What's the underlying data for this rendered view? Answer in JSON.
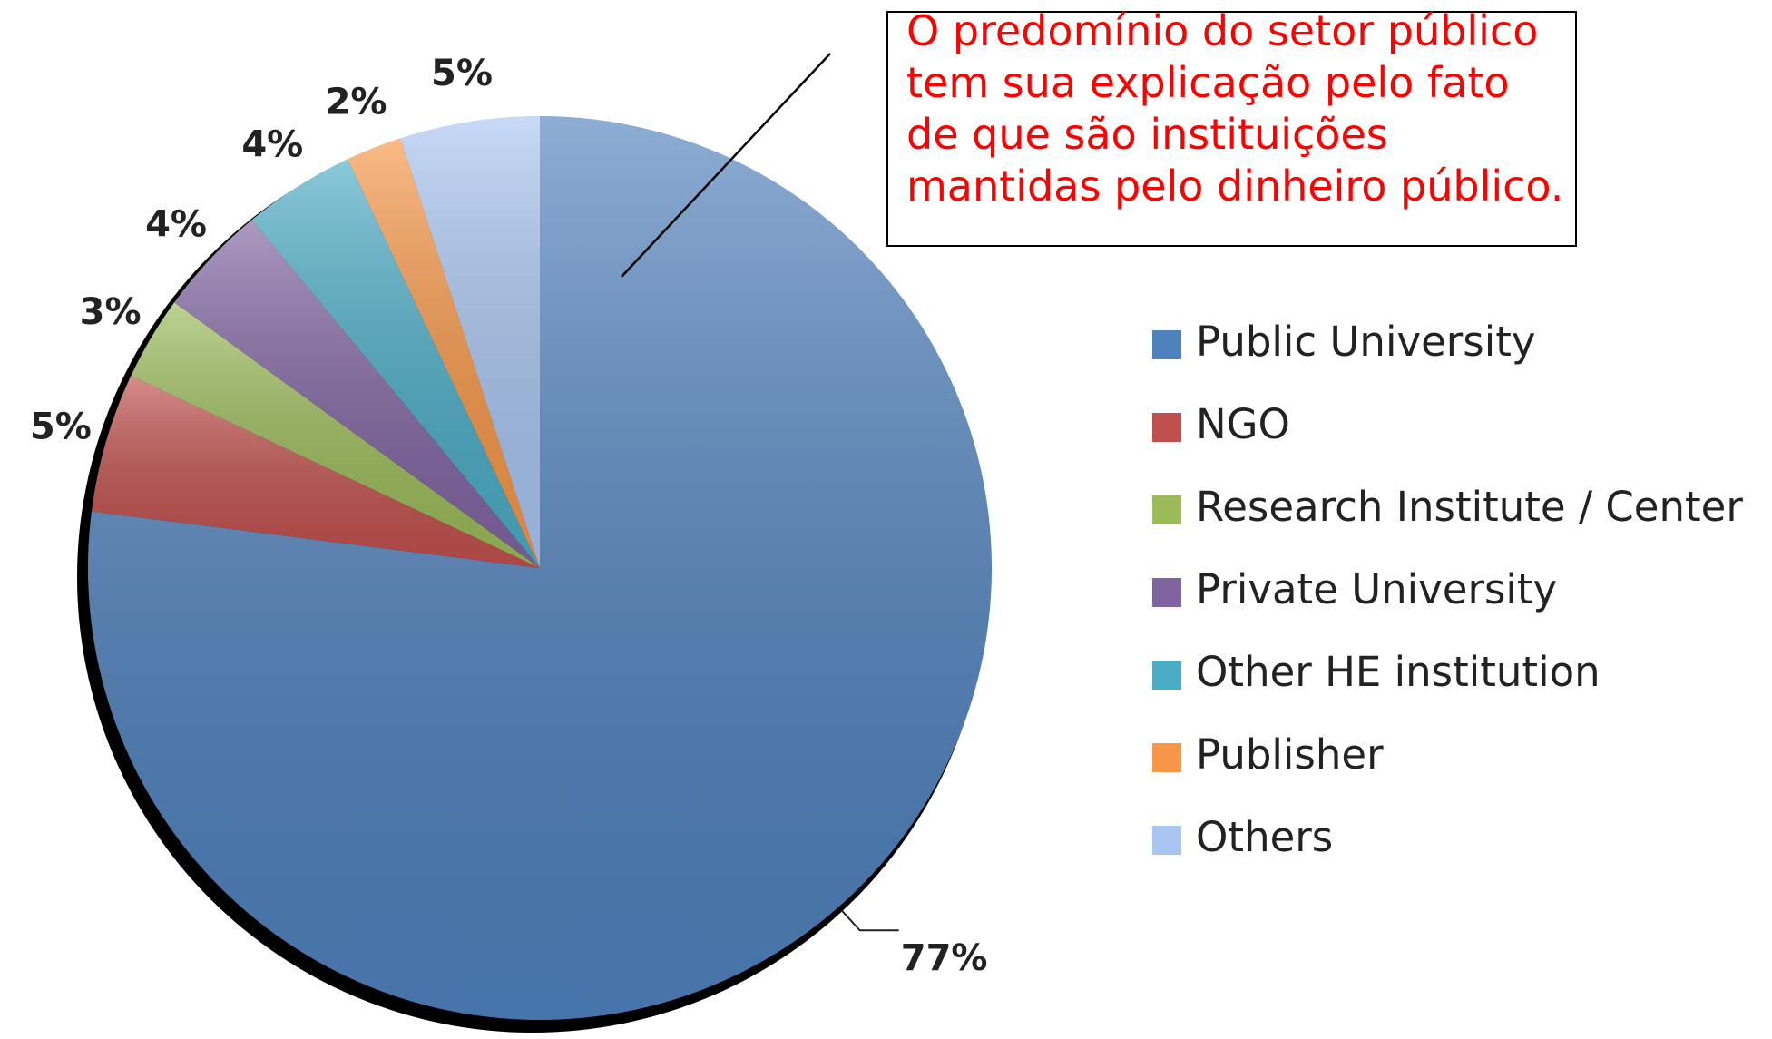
{
  "chart_data": {
    "type": "pie",
    "categories": [
      "Public University",
      "NGO",
      "Research Institute / Center",
      "Private University",
      "Other HE institution",
      "Publisher",
      "Others"
    ],
    "values": [
      77,
      5,
      3,
      4,
      4,
      2,
      5
    ],
    "value_labels": [
      "77%",
      "5%",
      "3%",
      "4%",
      "4%",
      "2%",
      "5%"
    ],
    "colors": [
      "#4f81bd",
      "#c0504d",
      "#9bbb59",
      "#8064a2",
      "#4bacc6",
      "#f79646",
      "#a9c6f2"
    ],
    "legend": "right",
    "annotation": "O predomínio do setor público tem sua explicação pelo fato de que são instituições mantidas pelo dinheiro público."
  }
}
